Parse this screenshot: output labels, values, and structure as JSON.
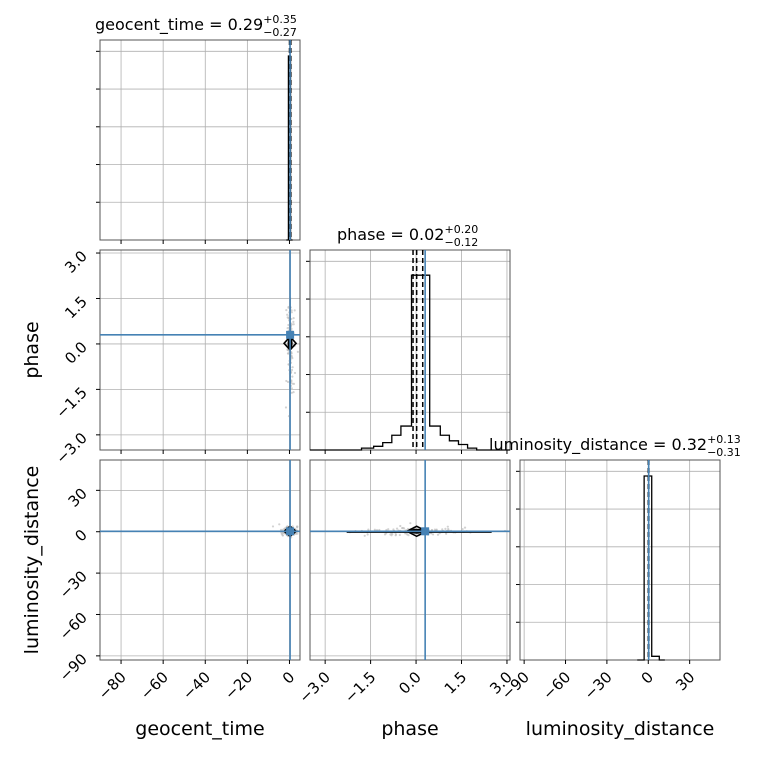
{
  "chart_data": {
    "type": "corner",
    "grid": true,
    "parameters": [
      {
        "name": "geocent_time",
        "title": {
          "label": "geocent_time = 0.29",
          "plus": "+0.35",
          "minus": "−0.27"
        },
        "range": [
          -90,
          5
        ],
        "ticks": [
          -80,
          -60,
          -40,
          -20,
          0
        ],
        "tick_labels": [
          "−80",
          "−60",
          "−40",
          "−20",
          "0"
        ],
        "median": 0.29,
        "q16": 0.02,
        "q84": 0.64,
        "truth": 0.29,
        "hist_bins": [
          [
            -1.5,
            -0.5,
            0.0
          ],
          [
            -0.5,
            0.5,
            1.0
          ],
          [
            0.5,
            1.5,
            0.0
          ]
        ]
      },
      {
        "name": "phase",
        "title": {
          "label": "phase = 0.02",
          "plus": "+0.20",
          "minus": "−0.12"
        },
        "range": [
          -3.5,
          3.1
        ],
        "ticks": [
          -3.0,
          -1.5,
          0.0,
          1.5,
          3.0
        ],
        "tick_labels": [
          "−3.0",
          "−1.5",
          "0.0",
          "1.5",
          "3.0"
        ],
        "median": 0.02,
        "q16": -0.1,
        "q84": 0.22,
        "truth": 0.3,
        "hist_bins": [
          [
            -3.5,
            -1.8,
            0.0
          ],
          [
            -1.8,
            -1.4,
            0.01
          ],
          [
            -1.4,
            -1.1,
            0.02
          ],
          [
            -1.1,
            -0.8,
            0.04
          ],
          [
            -0.8,
            -0.5,
            0.08
          ],
          [
            -0.5,
            -0.15,
            0.13
          ],
          [
            -0.15,
            0.2,
            0.95
          ],
          [
            0.2,
            0.45,
            0.95
          ],
          [
            0.45,
            0.8,
            0.13
          ],
          [
            0.8,
            1.1,
            0.08
          ],
          [
            1.1,
            1.4,
            0.05
          ],
          [
            1.4,
            1.7,
            0.03
          ],
          [
            1.7,
            2.0,
            0.01
          ],
          [
            2.0,
            3.1,
            0.0
          ]
        ]
      },
      {
        "name": "luminosity_distance",
        "title": {
          "label": "luminosity_distance = 0.32",
          "plus": "+0.13",
          "minus": "−0.31"
        },
        "range": [
          -93,
          52
        ],
        "ticks": [
          -90,
          -60,
          -30,
          0,
          30
        ],
        "tick_labels": [
          "−90",
          "−60",
          "−30",
          "0",
          "30"
        ],
        "median": 0.32,
        "q16": 0.01,
        "q84": 0.45,
        "truth": 0.3,
        "hist_bins": [
          [
            -8,
            -3,
            0.0
          ],
          [
            -3,
            2.5,
            1.0
          ],
          [
            2.5,
            8,
            0.02
          ],
          [
            8,
            12,
            0.0
          ]
        ]
      }
    ],
    "y_ranges": {
      "phase": [
        -3.5,
        3.1
      ],
      "luminosity_distance": [
        -93,
        52
      ]
    },
    "y_ticks": {
      "phase": [
        -3.0,
        -1.5,
        0.0,
        1.5,
        3.0
      ],
      "luminosity_distance": [
        -90,
        -60,
        -30,
        0,
        30
      ]
    },
    "y_tick_labels": {
      "phase": [
        "−3.0",
        "−1.5",
        "0.0",
        "1.5",
        "3.0"
      ],
      "luminosity_distance": [
        "−90",
        "−60",
        "−30",
        "0",
        "30"
      ]
    },
    "colors": {
      "truth": "#4682b4",
      "histogram": "#000000",
      "samples": "#bfbfbf"
    }
  }
}
